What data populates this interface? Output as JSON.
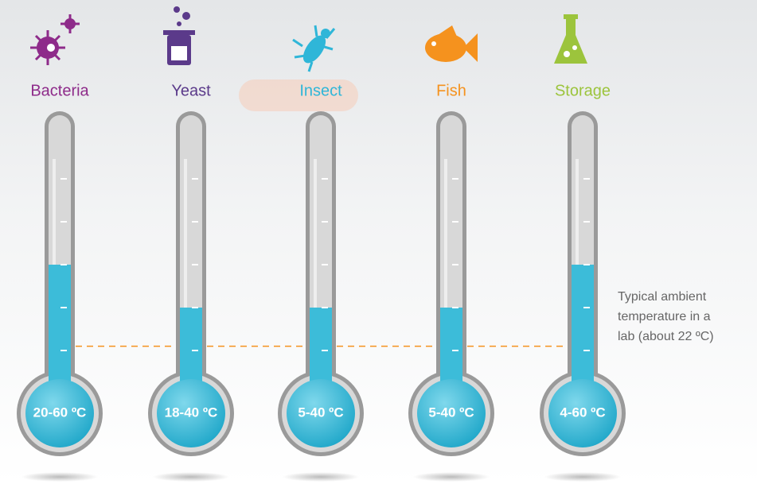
{
  "chart_data": {
    "type": "thermometer",
    "categories": [
      "Bacteria",
      "Yeast",
      "Insect",
      "Fish",
      "Storage"
    ],
    "category_colors": [
      "#8e2b8a",
      "#5b3a8a",
      "#2fb6d8",
      "#f5921e",
      "#9cc43c"
    ],
    "values": [
      60,
      40,
      40,
      40,
      60
    ],
    "value_labels": [
      "20-60 ºC",
      "18-40 ºC",
      "5-40 ºC",
      "5-40 ºC",
      "4-60 ºC"
    ],
    "color": "#3cbcd9",
    "ylim": [
      0,
      125
    ],
    "yticks": [
      20,
      40,
      60,
      80,
      100
    ],
    "reference_line": {
      "value": 22,
      "color": "#f5921e",
      "label_lines": [
        "Typical ambient",
        "temperature in a",
        "lab (about 22 ºC)"
      ]
    }
  }
}
